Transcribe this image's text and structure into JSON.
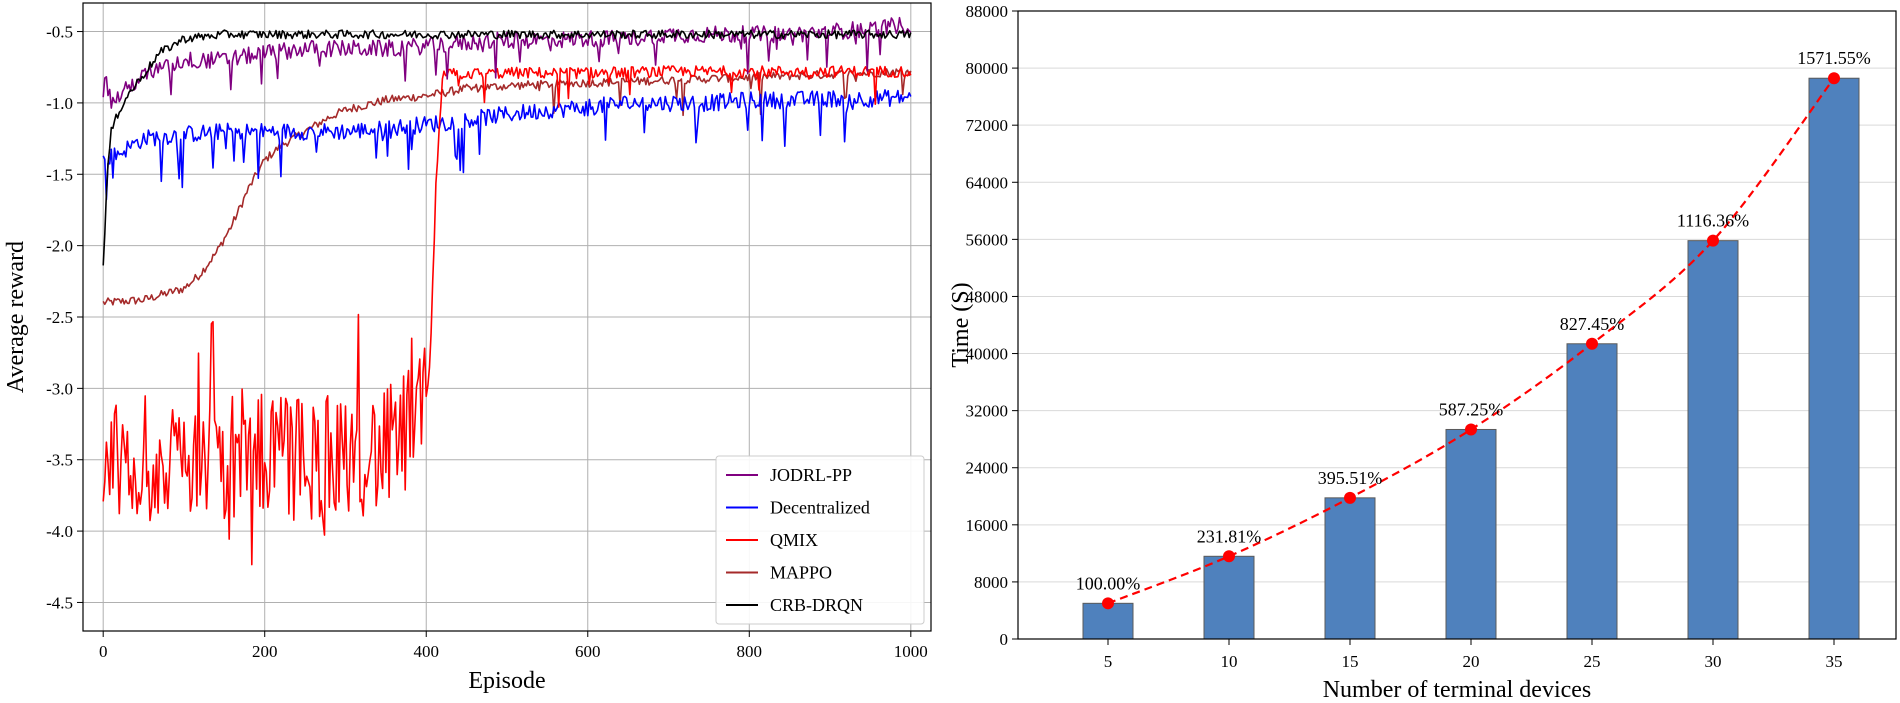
{
  "chart_data": [
    {
      "type": "line",
      "xlabel": "Episode",
      "ylabel": "Average reward",
      "xlim": [
        -25,
        1025
      ],
      "ylim": [
        -4.7,
        -0.3
      ],
      "xticks": [
        0,
        200,
        400,
        600,
        800,
        1000
      ],
      "yticks": [
        -4.5,
        -4.0,
        -3.5,
        -3.0,
        -2.5,
        -2.0,
        -1.5,
        -1.0,
        -0.5
      ],
      "ytick_labels": [
        "-4.5",
        "-4.0",
        "-3.5",
        "-3.0",
        "-2.5",
        "-2.0",
        "-1.5",
        "-1.0",
        "-0.5"
      ],
      "grid": true,
      "legend_position": "bottom-right",
      "series": [
        {
          "name": "JODRL-PP",
          "color": "#800080",
          "x": [
            0,
            10,
            20,
            40,
            60,
            80,
            100,
            150,
            200,
            250,
            300,
            350,
            400,
            450,
            500,
            550,
            600,
            650,
            700,
            750,
            800,
            850,
            900,
            950,
            1000
          ],
          "values": [
            -0.75,
            -1.0,
            -0.95,
            -0.85,
            -0.78,
            -0.75,
            -0.7,
            -0.7,
            -0.65,
            -0.62,
            -0.62,
            -0.62,
            -0.6,
            -0.58,
            -0.56,
            -0.56,
            -0.55,
            -0.55,
            -0.52,
            -0.52,
            -0.52,
            -0.52,
            -0.5,
            -0.48,
            -0.45
          ],
          "noise": 0.06
        },
        {
          "name": "Decentralized",
          "color": "#0000ff",
          "x": [
            0,
            20,
            50,
            100,
            150,
            200,
            250,
            300,
            350,
            400,
            450,
            500,
            550,
            600,
            650,
            700,
            750,
            800,
            850,
            900,
            950,
            1000
          ],
          "values": [
            -1.4,
            -1.35,
            -1.25,
            -1.22,
            -1.2,
            -1.2,
            -1.2,
            -1.2,
            -1.18,
            -1.15,
            -1.12,
            -1.08,
            -1.05,
            -1.03,
            -1.0,
            -1.0,
            -1.0,
            -0.98,
            -0.98,
            -0.97,
            -0.97,
            -0.96
          ],
          "noise": 0.06
        },
        {
          "name": "QMIX",
          "color": "#ff0000",
          "x": [
            0,
            50,
            100,
            150,
            200,
            250,
            300,
            350,
            398,
            405,
            412,
            420,
            500,
            600,
            700,
            800,
            900,
            1000
          ],
          "values": [
            -3.5,
            -3.5,
            -3.5,
            -3.45,
            -3.45,
            -3.5,
            -3.45,
            -3.45,
            -3.2,
            -2.8,
            -1.6,
            -0.8,
            -0.79,
            -0.79,
            -0.78,
            -0.78,
            -0.78,
            -0.78
          ],
          "noise": 0.04
        },
        {
          "name": "MAPPO",
          "color": "#a52a2a",
          "x": [
            0,
            50,
            100,
            120,
            140,
            160,
            180,
            200,
            220,
            250,
            280,
            300,
            350,
            400,
            450,
            500,
            600,
            700,
            800,
            900,
            1000
          ],
          "values": [
            -2.4,
            -2.38,
            -2.3,
            -2.2,
            -2.05,
            -1.85,
            -1.6,
            -1.4,
            -1.3,
            -1.2,
            -1.1,
            -1.05,
            -0.98,
            -0.95,
            -0.9,
            -0.88,
            -0.86,
            -0.84,
            -0.82,
            -0.8,
            -0.78
          ],
          "noise": 0.03
        },
        {
          "name": "CRB-DRQN",
          "color": "#000000",
          "x": [
            0,
            5,
            10,
            20,
            30,
            50,
            70,
            100,
            150,
            200,
            300,
            400,
            500,
            600,
            700,
            800,
            900,
            1000
          ],
          "values": [
            -2.15,
            -1.5,
            -1.2,
            -1.05,
            -0.95,
            -0.8,
            -0.65,
            -0.55,
            -0.52,
            -0.52,
            -0.52,
            -0.52,
            -0.52,
            -0.52,
            -0.52,
            -0.52,
            -0.52,
            -0.52
          ],
          "noise": 0.03
        }
      ]
    },
    {
      "type": "bar",
      "xlabel": "Number of terminal devices",
      "ylabel": "Time (S)",
      "categories": [
        "5",
        "10",
        "15",
        "20",
        "25",
        "30",
        "35"
      ],
      "values": [
        5000,
        11590,
        19780,
        29360,
        41370,
        55820,
        78580
      ],
      "labels": [
        "100.00%",
        "231.81%",
        "395.51%",
        "587.25%",
        "827.45%",
        "1116.36%",
        "1571.55%"
      ],
      "ylim": [
        0,
        88000
      ],
      "yticks": [
        0,
        8000,
        16000,
        24000,
        32000,
        40000,
        48000,
        56000,
        64000,
        72000,
        80000,
        88000
      ],
      "ytick_labels": [
        "0",
        "8000",
        "16000",
        "24000",
        "32000",
        "40000",
        "48000",
        "56000",
        "64000",
        "72000",
        "80000",
        "88000"
      ],
      "bar_color": "#4f81bd",
      "line_color": "#ff0000",
      "grid": "horizontal"
    }
  ]
}
